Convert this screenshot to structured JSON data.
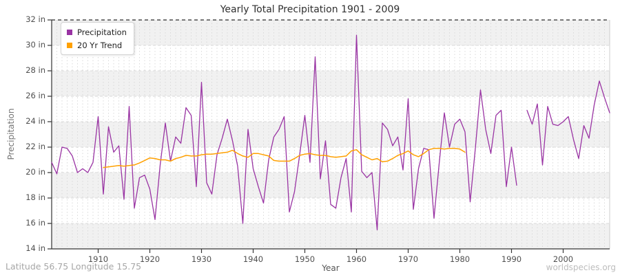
{
  "title": "Yearly Total Precipitation 1901 - 2009",
  "x_axis": {
    "label": "Year",
    "ticks": [
      1910,
      1920,
      1930,
      1940,
      1950,
      1960,
      1970,
      1980,
      1990,
      2000
    ]
  },
  "y_axis": {
    "label": "Precipitation",
    "unit": "in",
    "min": 14,
    "max": 32,
    "step": 2
  },
  "legend": {
    "items": [
      {
        "label": "Precipitation",
        "color": "#9933A3"
      },
      {
        "label": "20 Yr Trend",
        "color": "#FFA000"
      }
    ]
  },
  "footer": {
    "left": "Latitude 56.75 Longitude 15.75",
    "right": "worldspecies.org"
  },
  "colors": {
    "precipitation_line": "#9933A3",
    "trend_line": "#FFA000",
    "band_gray": "#f1f1f1",
    "grid": "#d9d9d9",
    "axis": "#333333",
    "top_dashed": "#2a2a2a",
    "right_border": "#cccccc"
  },
  "chart_data": {
    "type": "line",
    "title": "Yearly Total Precipitation 1901 - 2009",
    "xlabel": "Year",
    "ylabel": "Precipitation",
    "x_range": [
      1901,
      2009
    ],
    "ylim": [
      14,
      32
    ],
    "grid": true,
    "legend_position": "top-left",
    "series": [
      {
        "name": "Precipitation",
        "color": "#9933A3",
        "x_start": 1901,
        "note": "null = missing year 1992",
        "values": [
          20.8,
          19.9,
          22.0,
          21.9,
          21.3,
          20.0,
          20.3,
          20.0,
          20.8,
          24.4,
          18.3,
          23.6,
          21.6,
          22.1,
          17.9,
          25.2,
          17.2,
          19.6,
          19.8,
          18.7,
          16.3,
          20.6,
          23.9,
          20.9,
          22.8,
          22.3,
          25.1,
          24.5,
          18.9,
          27.1,
          19.2,
          18.3,
          21.4,
          22.7,
          24.2,
          22.5,
          20.5,
          16.0,
          23.4,
          20.3,
          18.9,
          17.6,
          21.0,
          22.8,
          23.4,
          24.4,
          16.9,
          18.5,
          21.4,
          24.5,
          20.8,
          29.1,
          19.5,
          22.5,
          17.5,
          17.2,
          19.6,
          21.1,
          16.9,
          30.8,
          20.1,
          19.6,
          20.0,
          15.5,
          23.9,
          23.4,
          22.1,
          22.8,
          20.2,
          25.8,
          17.1,
          20.3,
          21.9,
          21.8,
          16.4,
          20.7,
          24.7,
          22.0,
          23.8,
          24.2,
          23.2,
          17.7,
          21.9,
          26.5,
          23.4,
          21.5,
          24.5,
          24.9,
          18.9,
          22.0,
          19.0,
          null,
          24.9,
          23.8,
          25.4,
          20.6,
          25.2,
          23.8,
          23.7,
          24.0,
          24.4,
          22.6,
          21.1,
          23.7,
          22.7,
          25.3,
          27.2,
          25.9,
          24.7
        ]
      },
      {
        "name": "20 Yr Trend",
        "color": "#FFA000",
        "x_start": 1911,
        "values": [
          20.4,
          20.45,
          20.5,
          20.55,
          20.5,
          20.55,
          20.6,
          20.75,
          20.95,
          21.15,
          21.1,
          21.0,
          21.0,
          20.9,
          21.1,
          21.2,
          21.35,
          21.3,
          21.3,
          21.4,
          21.45,
          21.45,
          21.5,
          21.55,
          21.6,
          21.75,
          21.5,
          21.3,
          21.2,
          21.5,
          21.5,
          21.4,
          21.3,
          20.95,
          20.9,
          20.9,
          20.9,
          21.1,
          21.35,
          21.45,
          21.5,
          21.4,
          21.35,
          21.35,
          21.25,
          21.2,
          21.25,
          21.3,
          21.7,
          21.8,
          21.4,
          21.2,
          21.0,
          21.1,
          20.85,
          20.9,
          21.1,
          21.35,
          21.5,
          21.7,
          21.4,
          21.25,
          21.5,
          21.8,
          21.9,
          21.9,
          21.85,
          21.9,
          21.9,
          21.85,
          21.6
        ]
      }
    ]
  }
}
